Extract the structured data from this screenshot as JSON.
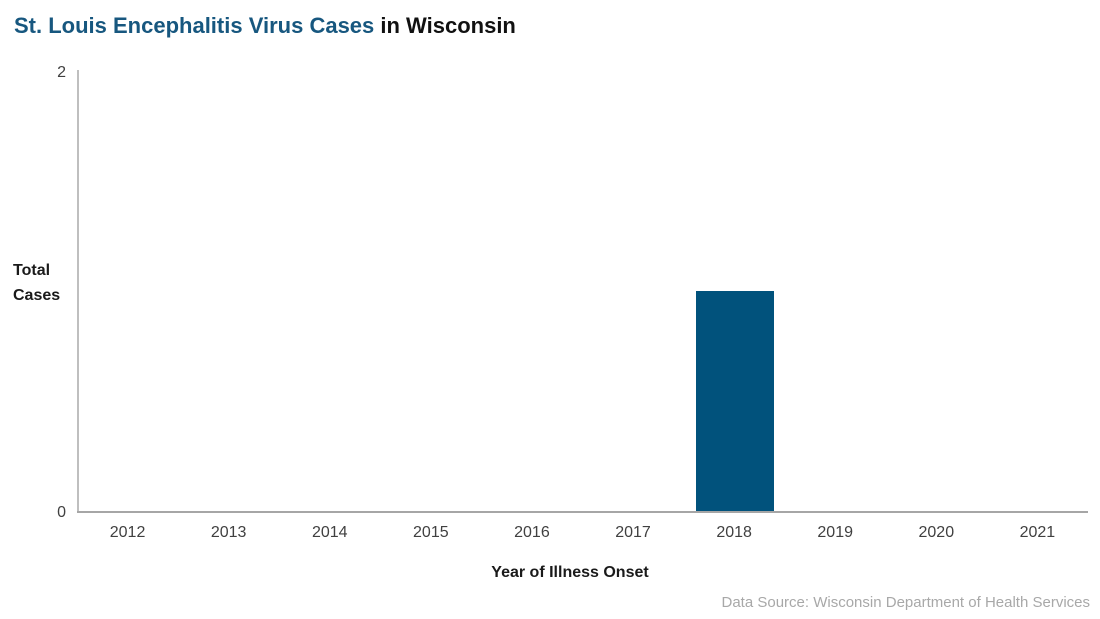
{
  "title": {
    "main": "St. Louis Encephalitis Virus Cases",
    "suffix": " in Wisconsin"
  },
  "chart_data": {
    "type": "bar",
    "title": "St. Louis Encephalitis Virus Cases in Wisconsin",
    "categories": [
      "2012",
      "2013",
      "2014",
      "2015",
      "2016",
      "2017",
      "2018",
      "2019",
      "2020",
      "2021"
    ],
    "values": [
      0,
      0,
      0,
      0,
      0,
      0,
      1,
      0,
      0,
      0
    ],
    "xlabel": "Year of Illness Onset",
    "ylabel": "Total Cases",
    "ylim": [
      0,
      2
    ],
    "yticks": [
      0,
      2
    ],
    "grid": false,
    "legend_position": "none",
    "bar_color": "#01527C"
  },
  "y_axis": {
    "label_line1": "Total",
    "label_line2": "Cases",
    "tick_top": "2",
    "tick_bottom": "0"
  },
  "x_axis": {
    "title": "Year of Illness Onset"
  },
  "footer": {
    "data_source": "Data Source: Wisconsin Department of Health Services"
  },
  "colors": {
    "title_blue": "#17577F",
    "bar": "#01527C",
    "y_axis_line": "#BFBFBF",
    "x_axis_line": "#A6A6A6",
    "tick_text": "#404040",
    "source_gray": "#A8A8A8"
  }
}
